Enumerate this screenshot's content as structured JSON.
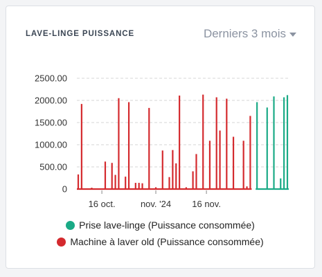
{
  "card": {
    "title": "LAVE-LINGE PUISSANCE",
    "period_label": "Derniers 3 mois"
  },
  "colors": {
    "green": "#1aaa86",
    "red": "#d42a2e",
    "grid": "#d4d4d4"
  },
  "chart_data": {
    "type": "bar",
    "ylim": [
      0,
      2500
    ],
    "y_ticks": [
      "2500.00",
      "2000.00",
      "1500.00",
      "1000.00",
      "500.00",
      "0"
    ],
    "y_tick_values": [
      2500,
      2000,
      1500,
      1000,
      500,
      0
    ],
    "xlim": [
      "2024-10-09",
      "2024-12-10"
    ],
    "x_ticks": [
      {
        "label": "16 oct.",
        "date": "2024-10-16"
      },
      {
        "label": "nov. '24",
        "date": "2024-11-01"
      },
      {
        "label": "16 nov.",
        "date": "2024-11-16"
      }
    ],
    "series": [
      {
        "name": "Machine à laver old (Puissance consommée)",
        "color": "#d42a2e",
        "points": [
          {
            "x": "2024-10-09",
            "y": 330
          },
          {
            "x": "2024-10-10",
            "y": 1920
          },
          {
            "x": "2024-10-13",
            "y": 30
          },
          {
            "x": "2024-10-17",
            "y": 620
          },
          {
            "x": "2024-10-19",
            "y": 590
          },
          {
            "x": "2024-10-20",
            "y": 320
          },
          {
            "x": "2024-10-21",
            "y": 2050
          },
          {
            "x": "2024-10-23",
            "y": 280
          },
          {
            "x": "2024-10-24",
            "y": 1960
          },
          {
            "x": "2024-10-26",
            "y": 140
          },
          {
            "x": "2024-10-27",
            "y": 140
          },
          {
            "x": "2024-10-28",
            "y": 130
          },
          {
            "x": "2024-10-30",
            "y": 1830
          },
          {
            "x": "2024-11-01",
            "y": 40
          },
          {
            "x": "2024-11-03",
            "y": 870
          },
          {
            "x": "2024-11-05",
            "y": 270
          },
          {
            "x": "2024-11-06",
            "y": 880
          },
          {
            "x": "2024-11-07",
            "y": 580
          },
          {
            "x": "2024-11-08",
            "y": 2110
          },
          {
            "x": "2024-11-10",
            "y": 40
          },
          {
            "x": "2024-11-12",
            "y": 400
          },
          {
            "x": "2024-11-13",
            "y": 790
          },
          {
            "x": "2024-11-15",
            "y": 2130
          },
          {
            "x": "2024-11-17",
            "y": 1090
          },
          {
            "x": "2024-11-19",
            "y": 2070
          },
          {
            "x": "2024-11-20",
            "y": 1320
          },
          {
            "x": "2024-11-22",
            "y": 2040
          },
          {
            "x": "2024-11-24",
            "y": 1180
          },
          {
            "x": "2024-11-27",
            "y": 1090
          },
          {
            "x": "2024-11-28",
            "y": 60
          },
          {
            "x": "2024-11-29",
            "y": 1650
          }
        ]
      },
      {
        "name": "Prise lave-linge (Puissance consommée)",
        "color": "#1aaa86",
        "points": [
          {
            "x": "2024-12-01",
            "y": 1960
          },
          {
            "x": "2024-12-04",
            "y": 1840
          },
          {
            "x": "2024-12-06",
            "y": 2090
          },
          {
            "x": "2024-12-08",
            "y": 240
          },
          {
            "x": "2024-12-09",
            "y": 2070
          },
          {
            "x": "2024-12-10",
            "y": 2120
          }
        ]
      }
    ],
    "grid": true
  },
  "legend": {
    "items": [
      {
        "label": "Prise lave-linge (Puissance consommée)",
        "color": "#1aaa86"
      },
      {
        "label": "Machine à laver old (Puissance consommée)",
        "color": "#d42a2e"
      }
    ]
  }
}
